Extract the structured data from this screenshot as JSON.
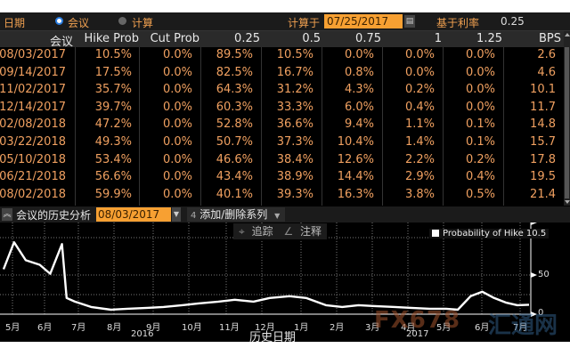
{
  "topbar": {
    "date_label": "日期",
    "radio_meeting": {
      "label": "会议",
      "selected": true
    },
    "radio_calc": {
      "label": "计算",
      "selected": false
    },
    "calc_on_label": "计算于",
    "calc_date": "07/25/2017",
    "base_rate_label": "基于利率",
    "base_rate": "0.25"
  },
  "table": {
    "columns": [
      "会议",
      "Hike Prob",
      "Cut Prob",
      "0.25",
      "0.5",
      "0.75",
      "1",
      "1.25",
      "BPS"
    ],
    "rows": [
      [
        "08/03/2017",
        "10.5%",
        "0.0%",
        "89.5%",
        "10.5%",
        "0.0%",
        "0.0%",
        "0.0%",
        "2.6"
      ],
      [
        "09/14/2017",
        "17.5%",
        "0.0%",
        "82.5%",
        "16.7%",
        "0.8%",
        "0.0%",
        "0.0%",
        "4.6"
      ],
      [
        "11/02/2017",
        "35.7%",
        "0.0%",
        "64.3%",
        "31.2%",
        "4.3%",
        "0.2%",
        "0.0%",
        "10.1"
      ],
      [
        "12/14/2017",
        "39.7%",
        "0.0%",
        "60.3%",
        "33.3%",
        "6.0%",
        "0.4%",
        "0.0%",
        "11.7"
      ],
      [
        "02/08/2018",
        "47.2%",
        "0.0%",
        "52.8%",
        "36.6%",
        "9.4%",
        "1.1%",
        "0.1%",
        "14.8"
      ],
      [
        "03/22/2018",
        "49.3%",
        "0.0%",
        "50.7%",
        "37.3%",
        "10.4%",
        "1.4%",
        "0.1%",
        "15.7"
      ],
      [
        "05/10/2018",
        "53.4%",
        "0.0%",
        "46.6%",
        "38.4%",
        "12.6%",
        "2.2%",
        "0.2%",
        "17.8"
      ],
      [
        "06/21/2018",
        "56.6%",
        "0.0%",
        "43.4%",
        "38.9%",
        "14.4%",
        "2.9%",
        "0.4%",
        "19.5"
      ],
      [
        "08/02/2018",
        "59.9%",
        "0.0%",
        "40.1%",
        "39.3%",
        "16.3%",
        "3.8%",
        "0.5%",
        "21.4"
      ]
    ]
  },
  "chart_header": {
    "title": "会议的历史分析",
    "meeting_date": "08/03/2017",
    "add_remove_series": "添加/删除系列",
    "add_icon": "4"
  },
  "chart_tools": {
    "track": "追踪",
    "annotate": "注释"
  },
  "chart_data": {
    "type": "line",
    "title": "会议的历史分析",
    "xlabel": "历史日期",
    "ylabel": "",
    "legend": [
      {
        "name": "Probability of Hike",
        "last_value": "10.5",
        "color": "#ffffff"
      }
    ],
    "legend_text": "Probability of Hike 10.5",
    "x_ticks": [
      "5月",
      "6月",
      "7月",
      "8月",
      "9月",
      "10月",
      "11月",
      "12月",
      "1月",
      "2月",
      "3月",
      "4月",
      "5月",
      "6月",
      "7月"
    ],
    "year_labels": [
      {
        "label": "2016",
        "under": "9月"
      },
      {
        "label": "2017",
        "under": "4月"
      }
    ],
    "y_ticks": [
      "0",
      "50"
    ],
    "ylim": [
      0,
      100
    ],
    "grid": true,
    "series": [
      {
        "name": "Probability of Hike",
        "x": [
          "2016-05-01",
          "2016-05-10",
          "2016-05-20",
          "2016-06-01",
          "2016-06-10",
          "2016-06-20",
          "2016-06-24",
          "2016-07-01",
          "2016-07-15",
          "2016-08-01",
          "2016-08-15",
          "2016-09-01",
          "2016-09-15",
          "2016-10-01",
          "2016-10-15",
          "2016-11-01",
          "2016-11-15",
          "2016-12-01",
          "2016-12-15",
          "2017-01-01",
          "2017-01-15",
          "2017-02-01",
          "2017-02-15",
          "2017-03-01",
          "2017-03-15",
          "2017-04-01",
          "2017-04-15",
          "2017-05-01",
          "2017-05-15",
          "2017-05-25",
          "2017-06-05",
          "2017-06-15",
          "2017-06-25",
          "2017-07-05",
          "2017-07-15",
          "2017-07-25"
        ],
        "values": [
          50,
          80,
          60,
          55,
          45,
          78,
          18,
          14,
          8,
          5,
          6,
          7,
          8,
          10,
          12,
          14,
          16,
          14,
          18,
          20,
          18,
          10,
          8,
          10,
          9,
          8,
          7,
          6,
          6,
          5,
          20,
          25,
          18,
          13,
          10,
          10.5
        ]
      }
    ]
  },
  "watermark": {
    "text": "FX678",
    "text2": "汇通网"
  }
}
